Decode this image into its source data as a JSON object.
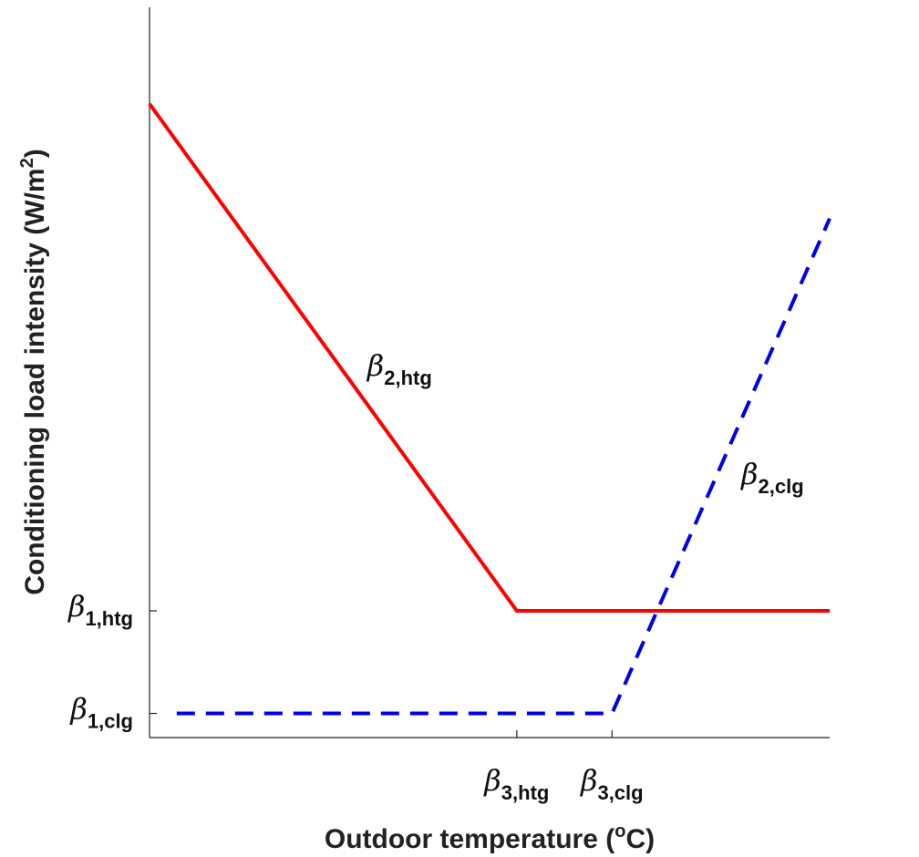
{
  "chart_data": {
    "type": "line",
    "title": "",
    "xlabel": {
      "text": "Outdoor temperature (",
      "sup": "o",
      "tail": "C)"
    },
    "ylabel": {
      "text": "Conditioning load intensity (W/m",
      "sup": "2",
      "tail": ")"
    },
    "x_ticks": [
      {
        "greek": "β",
        "sub": "3,htg",
        "value": 0.54
      },
      {
        "greek": "β",
        "sub": "3,clg",
        "value": 0.68
      }
    ],
    "y_ticks": [
      {
        "greek": "β",
        "sub": "1,htg",
        "value": 0.21
      },
      {
        "greek": "β",
        "sub": "1,clg",
        "value": 0.04
      }
    ],
    "xlim": [
      0,
      1
    ],
    "ylim": [
      0,
      1.21
    ],
    "grid": false,
    "series": [
      {
        "style": "solid",
        "color": "#ff0000",
        "x": [
          0,
          0.54,
          1
        ],
        "y": [
          1.05,
          0.21,
          0.21
        ]
      },
      {
        "style": "dashed",
        "color": "#0000ee",
        "x": [
          0.04,
          0.68,
          1
        ],
        "y": [
          0.04,
          0.04,
          0.86
        ]
      }
    ],
    "annotations": [
      {
        "greek": "β",
        "sub": "2,htg",
        "x": 0.32,
        "y": 0.6
      },
      {
        "greek": "β",
        "sub": "2,clg",
        "x": 0.87,
        "y": 0.42
      }
    ]
  }
}
